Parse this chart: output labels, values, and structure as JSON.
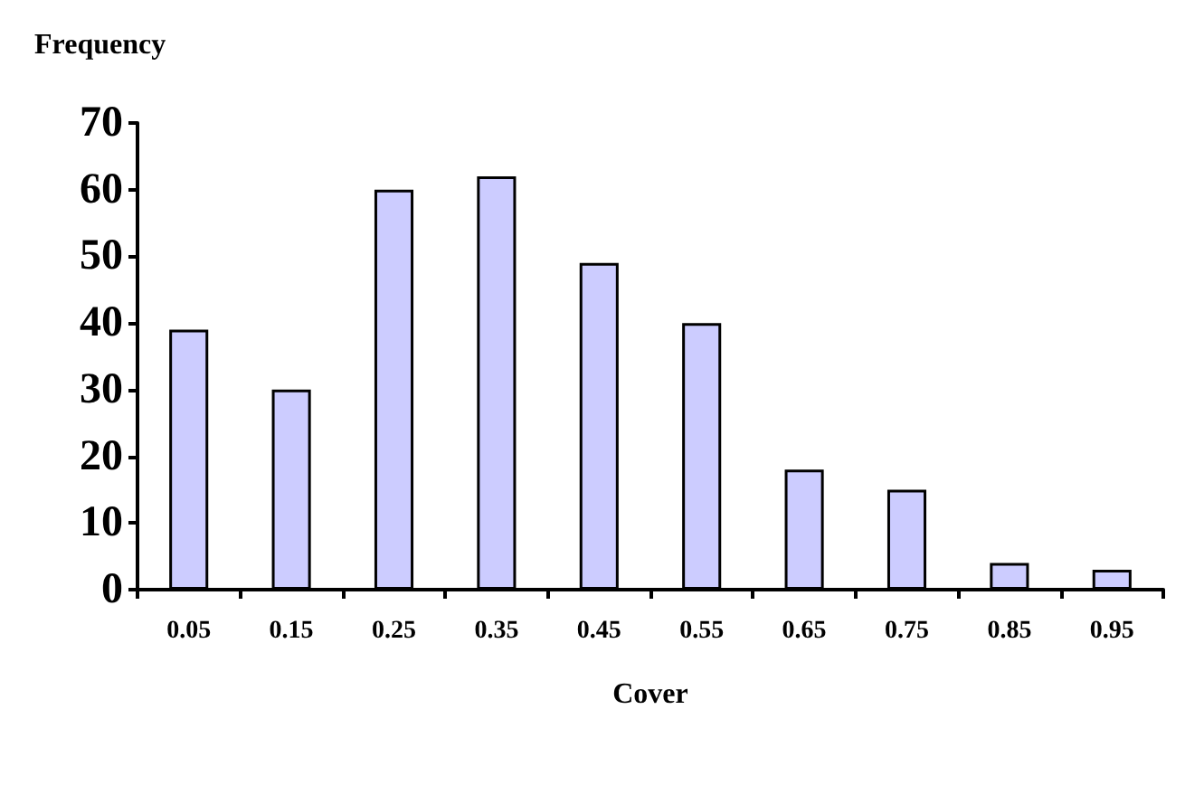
{
  "chart_data": {
    "type": "bar",
    "ylabel": "Frequency",
    "xlabel": "Cover",
    "categories": [
      "0.05",
      "0.15",
      "0.25",
      "0.35",
      "0.45",
      "0.55",
      "0.65",
      "0.75",
      "0.85",
      "0.95"
    ],
    "values": [
      39,
      30,
      60,
      62,
      49,
      40,
      18,
      15,
      4,
      3
    ],
    "color": "#ccccff",
    "ylim": [
      0,
      70
    ],
    "yticks": [
      0,
      10,
      20,
      30,
      40,
      50,
      60,
      70
    ],
    "grid": false
  }
}
